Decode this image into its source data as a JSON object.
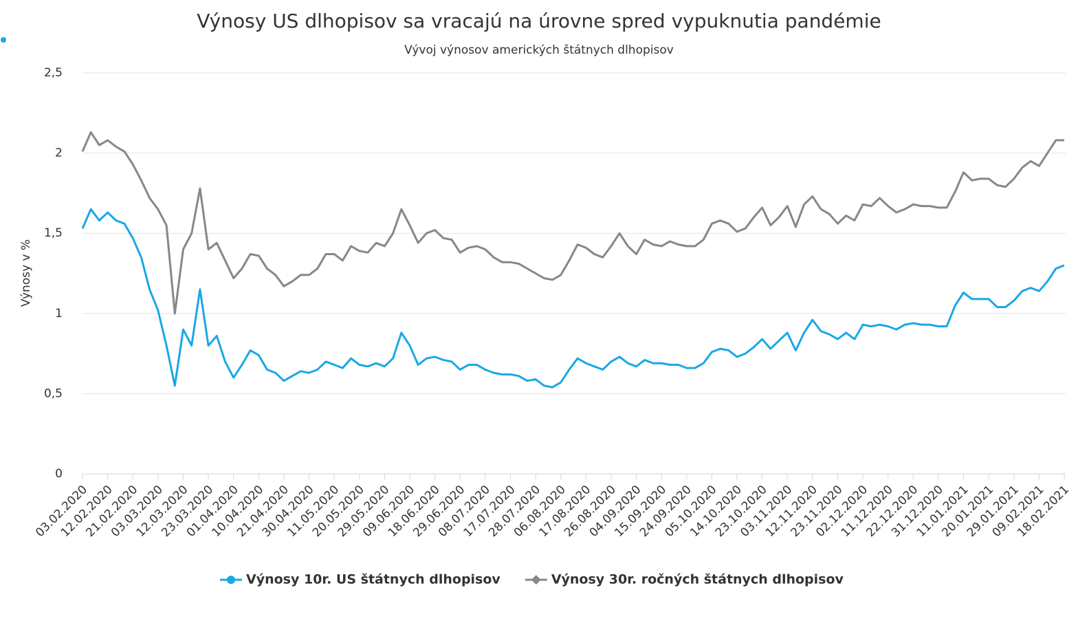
{
  "chart_data": {
    "type": "line",
    "title": "Výnosy US dlhopisov sa vracajú na úrovne spred vypuknutia pandémie",
    "subtitle": "Vývoj výnosov amerických štátnych dlhopisov",
    "y_label": "Výnosy v %",
    "categories": [
      "03.02.2020",
      null,
      null,
      "12.02.2020",
      null,
      null,
      "21.02.2020",
      null,
      null,
      "03.03.2020",
      null,
      null,
      "12.03.2020",
      null,
      null,
      "23.03.2020",
      null,
      null,
      "01.04.2020",
      null,
      null,
      "10.04.2020",
      null,
      null,
      "21.04.2020",
      null,
      null,
      "30.04.2020",
      null,
      null,
      "11.05.2020",
      null,
      null,
      "20.05.2020",
      null,
      null,
      "29.05.2020",
      null,
      null,
      "09.06.2020",
      null,
      null,
      "18.06.2020",
      null,
      null,
      "29.06.2020",
      null,
      null,
      "08.07.2020",
      null,
      null,
      "17.07.2020",
      null,
      null,
      "28.07.2020",
      null,
      null,
      "06.08.2020",
      null,
      null,
      "17.08.2020",
      null,
      null,
      "26.08.2020",
      null,
      null,
      "04.09.2020",
      null,
      null,
      "15.09.2020",
      null,
      null,
      "24.09.2020",
      null,
      null,
      "05.10.2020",
      null,
      null,
      "14.10.2020",
      null,
      null,
      "23.10.2020",
      null,
      null,
      "03.11.2020",
      null,
      null,
      "12.11.2020",
      null,
      null,
      "23.11.2020",
      null,
      null,
      "02.12.2020",
      null,
      null,
      "11.12.2020",
      null,
      null,
      "22.12.2020",
      null,
      null,
      "31.12.2020",
      null,
      null,
      "11.01.2021",
      null,
      null,
      "20.01.2021",
      null,
      null,
      "29.01.2021",
      null,
      null,
      "09.02.2021",
      null,
      null,
      "18.02.2021"
    ],
    "series": [
      {
        "name": "Výnosy 10r. US štátnych dlhopisov",
        "color": "#18a8e6",
        "marker": "circle",
        "values": [
          1.53,
          1.65,
          1.58,
          1.63,
          1.58,
          1.56,
          1.47,
          1.35,
          1.15,
          1.02,
          0.8,
          0.55,
          0.9,
          0.8,
          1.15,
          0.8,
          0.86,
          0.7,
          0.6,
          0.68,
          0.77,
          0.74,
          0.65,
          0.63,
          0.58,
          0.61,
          0.64,
          0.63,
          0.65,
          0.7,
          0.68,
          0.66,
          0.72,
          0.68,
          0.67,
          0.69,
          0.67,
          0.72,
          0.88,
          0.8,
          0.68,
          0.72,
          0.73,
          0.71,
          0.7,
          0.65,
          0.68,
          0.68,
          0.65,
          0.63,
          0.62,
          0.62,
          0.61,
          0.58,
          0.59,
          0.55,
          0.54,
          0.57,
          0.65,
          0.72,
          0.69,
          0.67,
          0.65,
          0.7,
          0.73,
          0.69,
          0.67,
          0.71,
          0.69,
          0.69,
          0.68,
          0.68,
          0.66,
          0.66,
          0.69,
          0.76,
          0.78,
          0.77,
          0.73,
          0.75,
          0.79,
          0.84,
          0.78,
          0.83,
          0.88,
          0.77,
          0.88,
          0.96,
          0.89,
          0.87,
          0.84,
          0.88,
          0.84,
          0.93,
          0.92,
          0.93,
          0.92,
          0.9,
          0.93,
          0.94,
          0.93,
          0.93,
          0.92,
          0.92,
          1.05,
          1.13,
          1.09,
          1.09,
          1.09,
          1.04,
          1.04,
          1.08,
          1.14,
          1.16,
          1.14,
          1.2,
          1.28,
          1.3
        ]
      },
      {
        "name": "Výnosy 30r. ročných štátnych dlhopisov",
        "color": "#87878b",
        "marker": "diamond",
        "values": [
          2.01,
          2.13,
          2.05,
          2.08,
          2.04,
          2.01,
          1.93,
          1.83,
          1.72,
          1.65,
          1.55,
          1.0,
          1.4,
          1.5,
          1.78,
          1.4,
          1.44,
          1.33,
          1.22,
          1.28,
          1.37,
          1.36,
          1.28,
          1.24,
          1.17,
          1.2,
          1.24,
          1.24,
          1.28,
          1.37,
          1.37,
          1.33,
          1.42,
          1.39,
          1.38,
          1.44,
          1.42,
          1.5,
          1.65,
          1.55,
          1.44,
          1.5,
          1.52,
          1.47,
          1.46,
          1.38,
          1.41,
          1.42,
          1.4,
          1.35,
          1.32,
          1.32,
          1.31,
          1.28,
          1.25,
          1.22,
          1.21,
          1.24,
          1.33,
          1.43,
          1.41,
          1.37,
          1.35,
          1.42,
          1.5,
          1.42,
          1.37,
          1.46,
          1.43,
          1.42,
          1.45,
          1.43,
          1.42,
          1.42,
          1.46,
          1.56,
          1.58,
          1.56,
          1.51,
          1.53,
          1.6,
          1.66,
          1.55,
          1.6,
          1.67,
          1.54,
          1.68,
          1.73,
          1.65,
          1.62,
          1.56,
          1.61,
          1.58,
          1.68,
          1.67,
          1.72,
          1.67,
          1.63,
          1.65,
          1.68,
          1.67,
          1.67,
          1.66,
          1.66,
          1.76,
          1.88,
          1.83,
          1.84,
          1.84,
          1.8,
          1.79,
          1.84,
          1.91,
          1.95,
          1.92,
          2.0,
          2.08,
          2.08
        ]
      }
    ],
    "ylim": [
      0,
      2.5
    ],
    "yticks": [
      0,
      {
        "value": 0.5,
        "label": "0,5"
      },
      1,
      {
        "value": 1.5,
        "label": "1,5"
      },
      2,
      {
        "value": 2.5,
        "label": "2,5"
      }
    ],
    "grid": true
  }
}
